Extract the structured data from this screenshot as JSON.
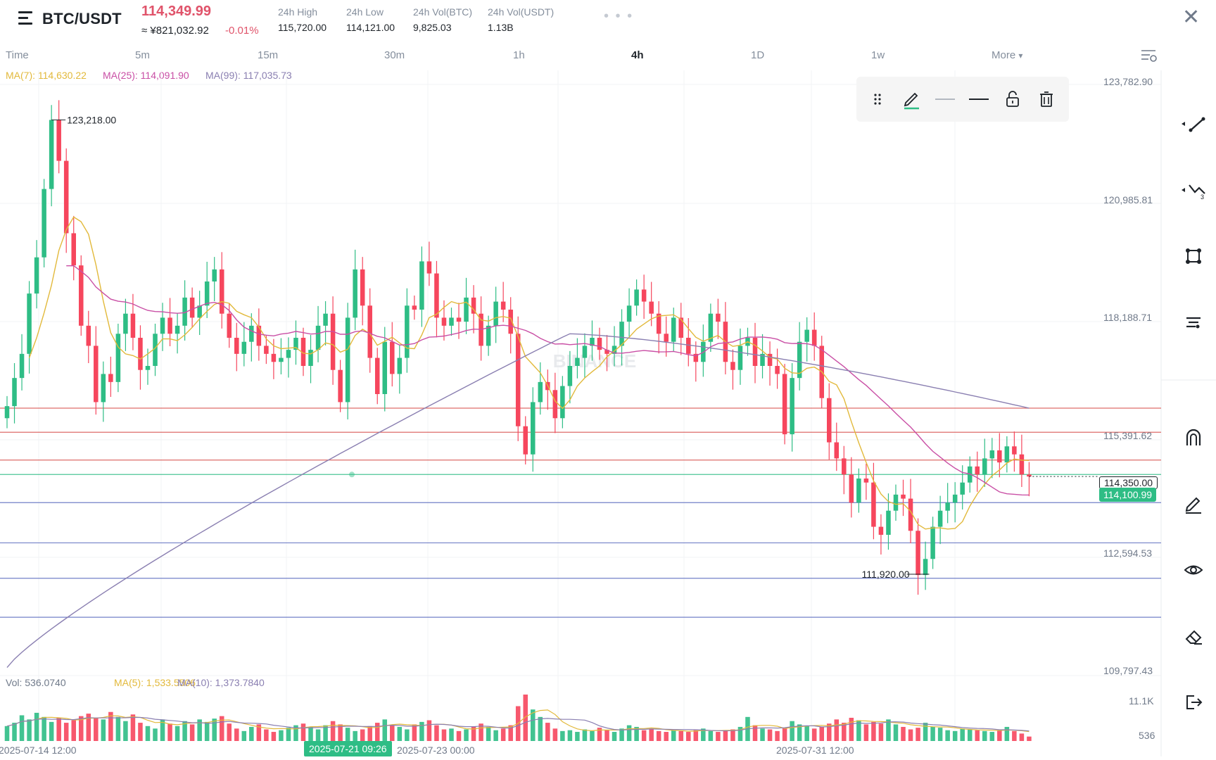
{
  "header": {
    "pair": "BTC/USDT",
    "last_price": "114,349.99",
    "fiat_price": "≈ ¥821,032.92",
    "change": "-0.01%",
    "stats": [
      {
        "label": "24h High",
        "value": "115,720.00"
      },
      {
        "label": "24h Low",
        "value": "114,121.00"
      },
      {
        "label": "24h Vol(BTC)",
        "value": "9,825.03"
      },
      {
        "label": "24h Vol(USDT)",
        "value": "1.13B"
      }
    ],
    "more_dots": "• • •",
    "close_icon": "close-icon"
  },
  "timeframes": {
    "items": [
      "Time",
      "5m",
      "15m",
      "30m",
      "1h",
      "4h",
      "1D",
      "1w",
      "More"
    ],
    "active": "4h",
    "more_caret": "▾"
  },
  "ma_legend": {
    "ma7": "MA(7): 114,630.22",
    "ma25": "MA(25): 114,091.90",
    "ma99": "MA(99): 117,035.73",
    "colors": {
      "ma7": "#e2b93b",
      "ma25": "#c94fa5",
      "ma99": "#8a7fb1"
    }
  },
  "vol_legend": {
    "vol": "Vol: 536.0740",
    "ma5": "MA(5): 1,533.5506",
    "ma10": "MA(10): 1,373.7840"
  },
  "price_axis": {
    "labels": [
      "123,782.90",
      "120,985.81",
      "118,188.71",
      "115,391.62",
      "112,594.53",
      "109,797.43"
    ],
    "vol_labels": [
      "11.1K",
      "536"
    ],
    "current_dotted": "114,350.00",
    "current_green": "114,100.99"
  },
  "chart_annotations": {
    "high_marker": "123,218.00",
    "low_marker": "111,920.00",
    "watermark": "BINANCE"
  },
  "time_axis": {
    "labels": [
      "2025-07-14 12:00",
      "2025-07-23 00:00",
      "2025-07-31 12:00"
    ],
    "crosshair_label": "2025-07-21 09:26"
  },
  "colors": {
    "up": "#2ebd85",
    "down": "#f6465d",
    "hline_red": "#d9534f",
    "hline_blue": "#5b6bbf",
    "hline_green": "#2ebd85"
  },
  "chart_data": {
    "type": "candlestick",
    "title": "BTC/USDT",
    "interval": "4h",
    "ylim": [
      109400,
      124100
    ],
    "price_points": [
      116100,
      116800,
      117400,
      118900,
      119800,
      121500,
      123218,
      122200,
      120400,
      119600,
      118100,
      117600,
      116200,
      116900,
      116700,
      117900,
      118400,
      117800,
      117000,
      117100,
      117900,
      118300,
      117900,
      118100,
      118800,
      118300,
      118600,
      119200,
      119500,
      118400,
      117800,
      117400,
      117700,
      118100,
      117600,
      117400,
      117200,
      117300,
      117500,
      117800,
      117100,
      117500,
      118100,
      118400,
      117000,
      116200,
      118300,
      119500,
      118600,
      117300,
      116400,
      117700,
      116900,
      117300,
      118600,
      118500,
      119700,
      119400,
      118300,
      118100,
      118300,
      118200,
      118800,
      118400,
      117600,
      118100,
      118700,
      118500,
      117900,
      115600,
      114900,
      116200,
      116700,
      116500,
      115800,
      116600,
      117100,
      117300,
      117600,
      117800,
      117500,
      117400,
      117600,
      118200,
      118600,
      119000,
      118700,
      118400,
      117900,
      117700,
      118300,
      117800,
      117400,
      117200,
      117700,
      118400,
      118200,
      117200,
      117000,
      117600,
      117800,
      117100,
      117400,
      117100,
      116900,
      115400,
      116800,
      117700,
      118000,
      117600,
      116300,
      115200,
      114800,
      114400,
      113700,
      114300,
      114200,
      113100,
      112900,
      113500,
      113900,
      113800,
      113000,
      111900,
      112300,
      113100,
      113500,
      113700,
      113900,
      114200,
      114600,
      114400,
      114800,
      115000,
      114700,
      115100,
      114900,
      114400,
      114350
    ],
    "volume_points": [
      1800,
      2200,
      3100,
      2600,
      3400,
      2900,
      2300,
      2800,
      2200,
      2500,
      3000,
      3300,
      2800,
      2600,
      3500,
      2900,
      2400,
      3200,
      2200,
      1800,
      1500,
      2600,
      2100,
      1800,
      2400,
      2000,
      2600,
      2300,
      2700,
      3000,
      2100,
      1500,
      1200,
      1700,
      2000,
      1400,
      1100,
      1300,
      1600,
      1900,
      2100,
      1700,
      1400,
      1900,
      2400,
      2000,
      1600,
      1200,
      1400,
      1800,
      2200,
      2600,
      1900,
      1700,
      1400,
      2000,
      2300,
      2500,
      1900,
      1400,
      1500,
      1200,
      1400,
      1700,
      2100,
      1700,
      1300,
      1500,
      1900,
      4200,
      5600,
      3800,
      2900,
      2200,
      1500,
      1200,
      1300,
      1100,
      1400,
      1200,
      1600,
      1300,
      1100,
      1500,
      1900,
      1700,
      1300,
      1500,
      1200,
      1100,
      1300,
      1200,
      1100,
      1300,
      1500,
      1200,
      1100,
      1300,
      1400,
      1700,
      2900,
      1900,
      1500,
      1400,
      1200,
      1600,
      2400,
      2000,
      1800,
      1500,
      1700,
      2100,
      2600,
      2200,
      2800,
      2500,
      2000,
      2300,
      2100,
      2600,
      2000,
      1700,
      1400,
      1600,
      2200,
      1700,
      1600,
      1300,
      1200,
      1500,
      1400,
      1300,
      1200,
      1100,
      1300,
      1700,
      1200,
      900,
      536
    ],
    "ma7_anchor_price": 114630.22,
    "ma25_anchor_price": 114091.9,
    "ma99_anchor_price": 117035.73,
    "horizontal_lines": [
      {
        "price": 116050,
        "color": "red"
      },
      {
        "price": 115450,
        "color": "red"
      },
      {
        "price": 114760,
        "color": "red"
      },
      {
        "price": 114400,
        "color": "green"
      },
      {
        "price": 113700,
        "color": "blue"
      },
      {
        "price": 112700,
        "color": "blue"
      },
      {
        "price": 111820,
        "color": "blue"
      },
      {
        "price": 110850,
        "color": "blue"
      }
    ],
    "high": 123218.0,
    "low": 111920.0
  },
  "toolbox": {
    "drag_icon": "drag-handle-icon",
    "pencil_icon": "pencil-icon",
    "thin_line_icon": "line-style-thin-icon",
    "thick_line_icon": "line-style-thick-icon",
    "lock_icon": "unlock-icon",
    "delete_icon": "trash-icon"
  },
  "right_toolbar": [
    "trendline-icon",
    "fib-icon",
    "shape-icon",
    "text-tool-icon",
    "magnet-icon",
    "pencil-draw-icon",
    "eye-icon",
    "eraser-icon",
    "exit-icon"
  ]
}
